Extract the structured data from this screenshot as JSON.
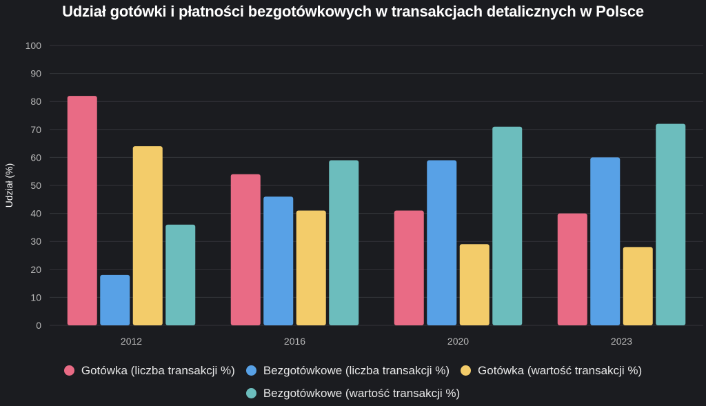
{
  "chart_data": {
    "type": "bar",
    "title": "Udział gotówki i płatności bezgotówkowych w transakcjach detalicznych w Polsce",
    "xlabel": "",
    "ylabel": "Udział (%)",
    "ylim": [
      0,
      100
    ],
    "yticks": [
      "0",
      "10",
      "20",
      "30",
      "40",
      "50",
      "60",
      "70",
      "80",
      "90",
      "100"
    ],
    "categories": [
      "2012",
      "2016",
      "2020",
      "2023"
    ],
    "grid": true,
    "legend_position": "bottom",
    "series": [
      {
        "name": "Gotówka (liczba transakcji %)",
        "color": "#e96b85",
        "values": [
          82,
          54,
          41,
          40
        ]
      },
      {
        "name": "Bezgotówkowe (liczba transakcji %)",
        "color": "#58a1e6",
        "values": [
          18,
          46,
          59,
          60
        ]
      },
      {
        "name": "Gotówka (wartość transakcji %)",
        "color": "#f3cc6a",
        "values": [
          64,
          41,
          29,
          28
        ]
      },
      {
        "name": "Bezgotówkowe (wartość transakcji %)",
        "color": "#6cbdbd",
        "values": [
          36,
          59,
          71,
          72
        ]
      }
    ]
  }
}
